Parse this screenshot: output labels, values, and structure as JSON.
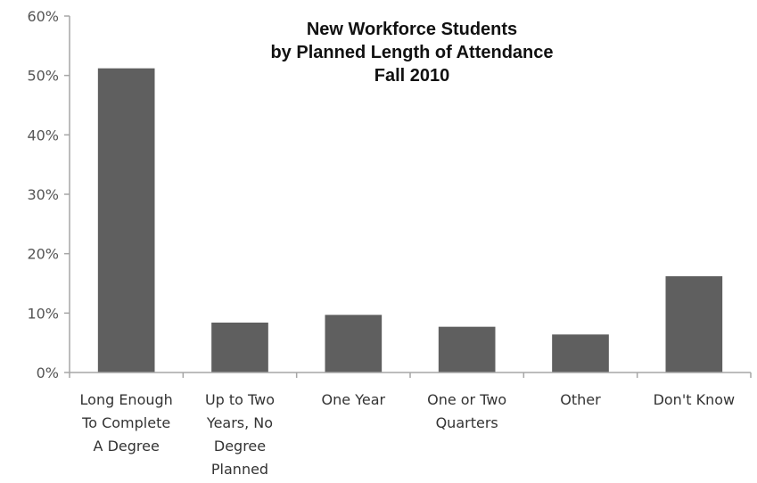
{
  "chart_data": {
    "type": "bar",
    "title_lines": [
      "New Workforce Students",
      "by Planned Length of Attendance",
      "Fall 2010"
    ],
    "xlabel": "",
    "ylabel": "",
    "ylim": [
      0,
      60
    ],
    "ytick_labels": [
      "0%",
      "10%",
      "20%",
      "30%",
      "40%",
      "50%",
      "60%"
    ],
    "categories": [
      [
        "Long Enough",
        "To Complete",
        "A Degree"
      ],
      [
        "Up to Two",
        "Years, No",
        "Degree",
        "Planned"
      ],
      [
        "One Year"
      ],
      [
        "One or Two",
        "Quarters"
      ],
      [
        "Other"
      ],
      [
        "Don't Know"
      ]
    ],
    "values": [
      51.2,
      8.4,
      9.7,
      7.7,
      6.4,
      16.2
    ],
    "value_format": "percent",
    "grid": false,
    "legend": "none",
    "bar_color": "#5f5f5f",
    "axis_color": "#a6a6a6"
  }
}
